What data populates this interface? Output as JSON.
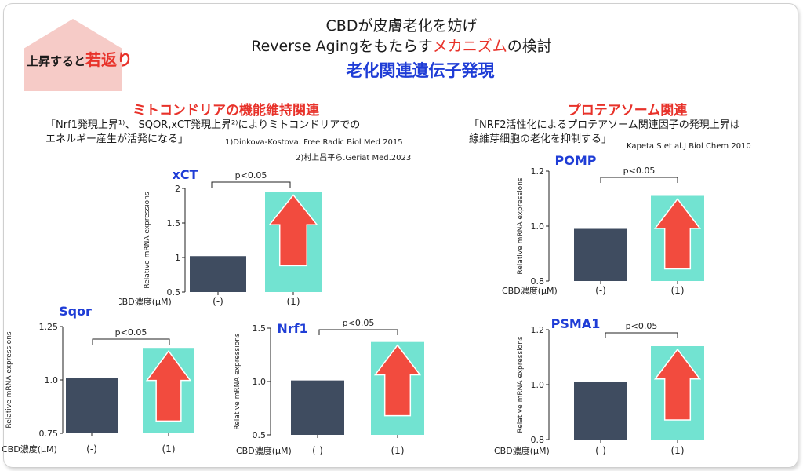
{
  "header": {
    "title_line1": "CBDが皮膚老化を妨げ",
    "title_line2_before": "Reverse Agingをもたらす",
    "title_line2_highlight": "メカニズム",
    "title_line2_after": "の検討",
    "title_line3": "老化関連遺伝子発現"
  },
  "badge": {
    "prefix": "上昇すると",
    "highlight": "若返り"
  },
  "mitochondria": {
    "heading": "ミトコンドリアの機能維持関連",
    "quote_line1": "「Nrf1発現上昇¹⁾、 SQOR,xCT発現上昇²⁾によりミトコンドリアでの",
    "quote_line2": "エネルギー産生が活発になる」",
    "ref1": "1)Dinkova-Kostova. Free Radic Biol Med 2015",
    "ref2": "2)村上昌平ら.Geriat Med.2023"
  },
  "proteasome": {
    "heading": "プロテアソーム関連",
    "quote_line1": "「NRF2活性化によるプロテアソーム関連因子の発現上昇は",
    "quote_line2": "線維芽細胞の老化を抑制する」",
    "ref": "Kapeta S et al.J Biol Chem 2010"
  },
  "colors": {
    "control": "#3f4c60",
    "cbd": "#72e3d1",
    "arrow": "#f24b3e",
    "title": "#1f3dd6"
  },
  "chart_data": [
    {
      "type": "bar",
      "title": "xCT",
      "xlabel": "CBD濃度(μM)",
      "ylabel": "Relative mRNA expressions",
      "categories": [
        "(-)",
        "(1)"
      ],
      "values": [
        1.02,
        1.95
      ],
      "ylim": [
        0.5,
        2
      ],
      "yticks": [
        "0.5",
        "1",
        "1.5",
        "2"
      ],
      "annotation": "p<0.05"
    },
    {
      "type": "bar",
      "title": "Sqor",
      "xlabel": "CBD濃度(μM)",
      "ylabel": "Relative mRNA expressions",
      "categories": [
        "(-)",
        "(1)"
      ],
      "values": [
        1.01,
        1.15
      ],
      "ylim": [
        0.75,
        1.25
      ],
      "yticks": [
        "0.75",
        "1.0",
        "1.25"
      ],
      "annotation": "p<0.05"
    },
    {
      "type": "bar",
      "title": "Nrf1",
      "xlabel": "CBD濃度(μM)",
      "ylabel": "Relative mRNA expressions",
      "categories": [
        "(-)",
        "(1)"
      ],
      "values": [
        1.01,
        1.37
      ],
      "ylim": [
        0.5,
        1.5
      ],
      "yticks": [
        "0.5",
        "1.0",
        "1.5"
      ],
      "annotation": "p<0.05"
    },
    {
      "type": "bar",
      "title": "POMP",
      "xlabel": "CBD濃度(μM)",
      "ylabel": "Relative mRNA expressions",
      "categories": [
        "(-)",
        "(1)"
      ],
      "values": [
        0.99,
        1.11
      ],
      "ylim": [
        0.8,
        1.2
      ],
      "yticks": [
        "0.8",
        "1.0",
        "1.2"
      ],
      "annotation": "p<0.05"
    },
    {
      "type": "bar",
      "title": "PSMA1",
      "xlabel": "CBD濃度(μM)",
      "ylabel": "Relative mRNA expressions",
      "categories": [
        "(-)",
        "(1)"
      ],
      "values": [
        1.01,
        1.14
      ],
      "ylim": [
        0.8,
        1.2
      ],
      "yticks": [
        "0.8",
        "1.0",
        "1.2"
      ],
      "annotation": "p<0.05"
    }
  ]
}
